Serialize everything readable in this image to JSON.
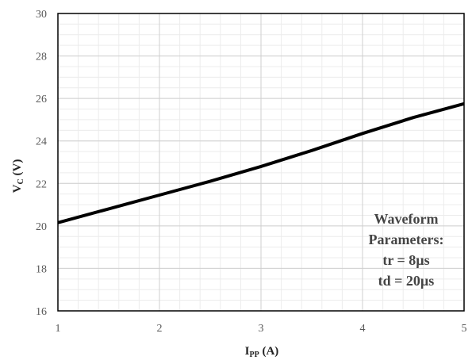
{
  "chart_data": {
    "type": "line",
    "xlabel": {
      "main": "I",
      "sub": "PP",
      "unit": " (A)"
    },
    "ylabel": {
      "main": "V",
      "sub": "C",
      "unit": " (V)"
    },
    "xlim": [
      1,
      5
    ],
    "ylim": [
      16,
      30
    ],
    "x_ticks": [
      1,
      2,
      3,
      4,
      5
    ],
    "y_ticks": [
      16,
      18,
      20,
      22,
      24,
      26,
      28,
      30
    ],
    "x_tick_labels": [
      "1",
      "2",
      "3",
      "4",
      "5"
    ],
    "y_tick_labels": [
      "16",
      "18",
      "20",
      "22",
      "24",
      "26",
      "28",
      "30"
    ],
    "grid": true,
    "minor_grid": true,
    "legend": "none",
    "series": [
      {
        "color": "#000000",
        "x": [
          1,
          1.5,
          2,
          2.5,
          3,
          3.5,
          4,
          4.5,
          5
        ],
        "y": [
          20.15,
          20.8,
          21.45,
          22.1,
          22.8,
          23.55,
          24.35,
          25.1,
          25.75
        ]
      }
    ],
    "annotation": [
      "Waveform",
      "Parameters:",
      "tr = 8µs",
      "td = 20µs"
    ]
  }
}
